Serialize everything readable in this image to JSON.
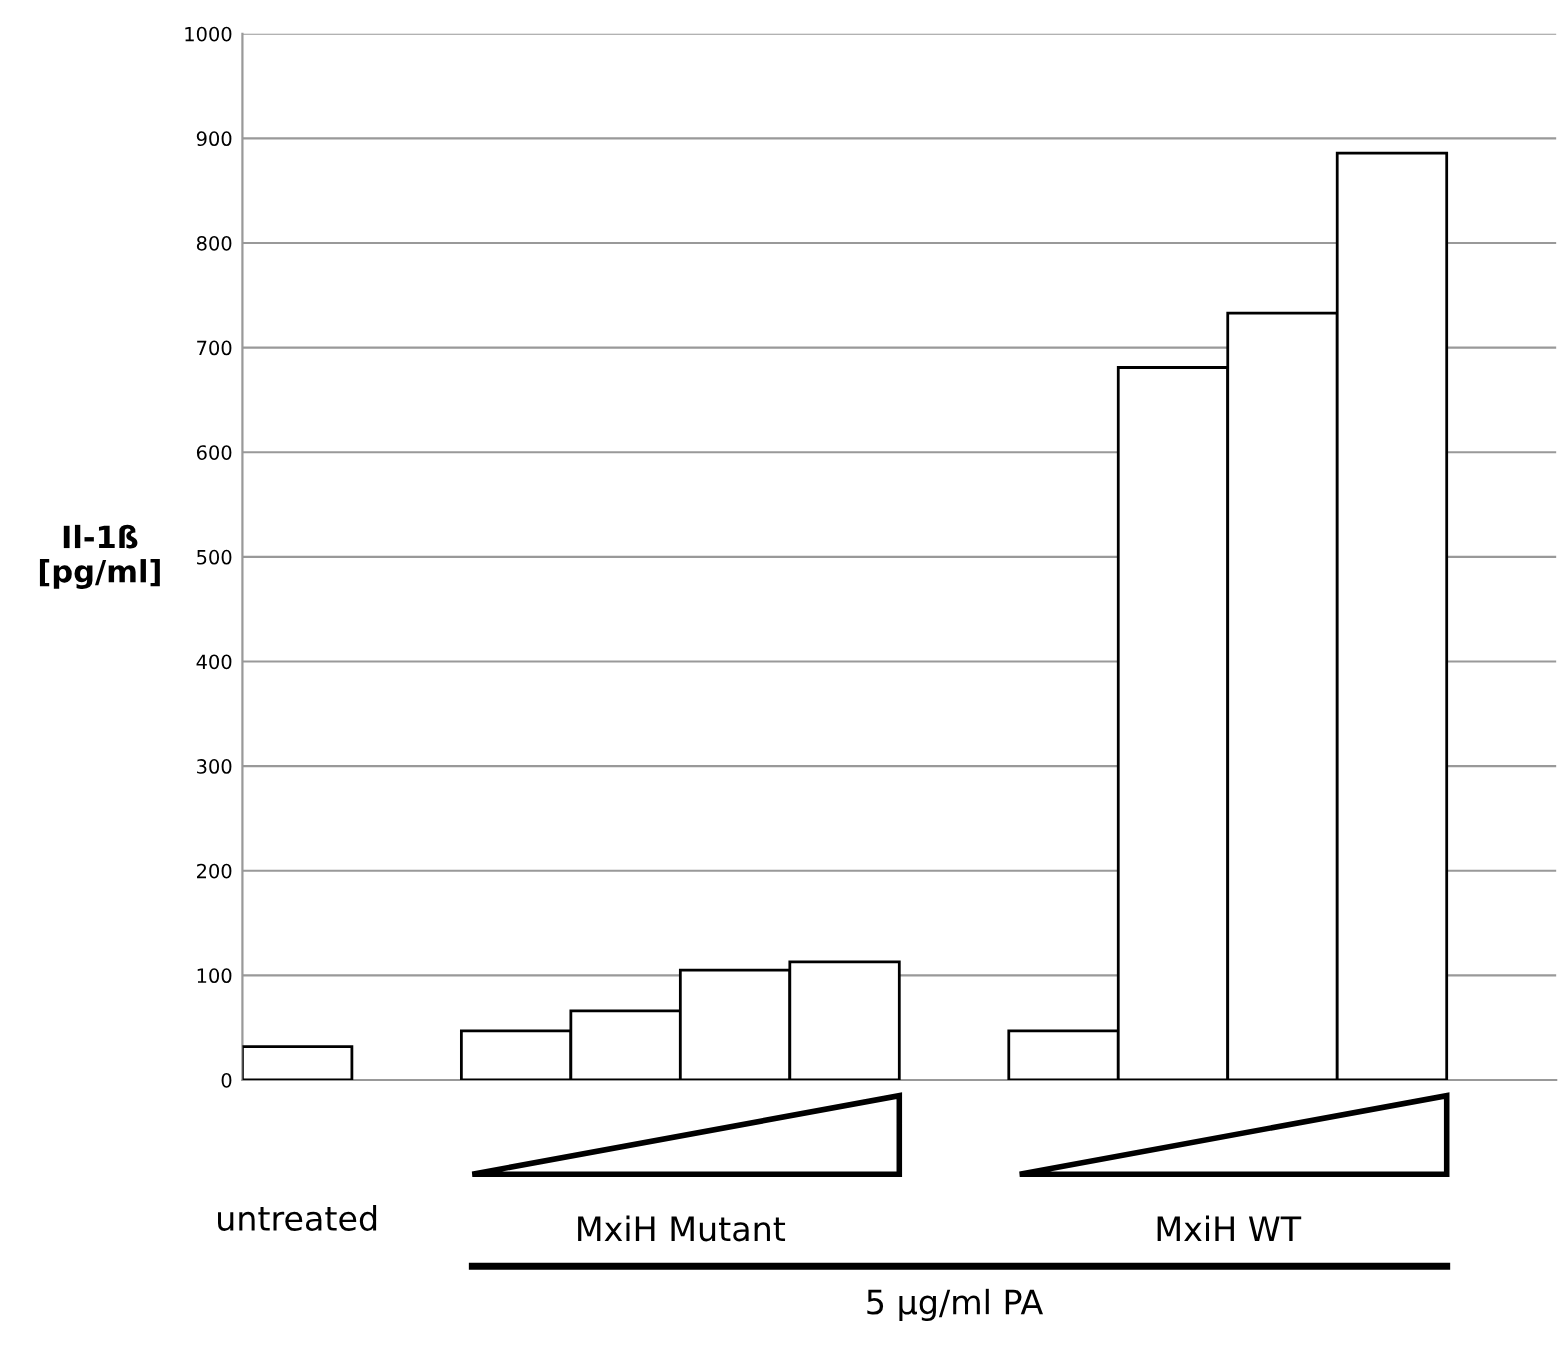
{
  "chart_data": {
    "type": "bar",
    "ylabel": "Il-1ß\n[pg/ml]",
    "categories": [
      null,
      null,
      null,
      null,
      null,
      null,
      null,
      null,
      null,
      null,
      null,
      null
    ],
    "values": [
      32,
      null,
      47,
      66,
      105,
      113,
      null,
      47,
      681,
      733,
      886,
      null
    ],
    "colors": [
      "#ffffff",
      "#ffffff",
      "#ffffff",
      "#ffffff",
      "#ffffff",
      "#ffffff",
      "#ffffff",
      "#ffffff",
      "#ffffff",
      "#ffffff",
      "#ffffff",
      "#ffffff"
    ],
    "ylim": [
      0,
      1000
    ],
    "yticks": [
      0,
      100,
      200,
      300,
      400,
      500,
      600,
      700,
      800,
      900,
      1000
    ],
    "grid": "y",
    "tick_labels": "y",
    "annotations": [
      "untreated",
      "MxiH Mutant",
      "MxiH WT",
      "5 µg/ml PA"
    ]
  }
}
